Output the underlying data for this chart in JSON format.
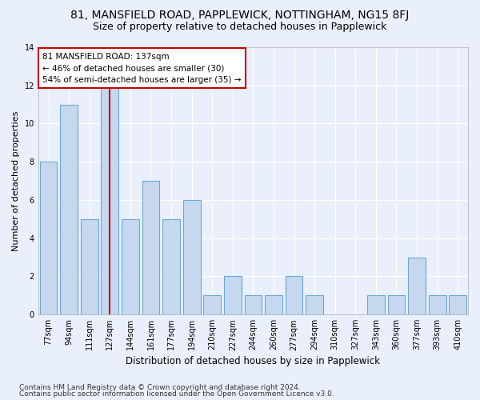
{
  "title": "81, MANSFIELD ROAD, PAPPLEWICK, NOTTINGHAM, NG15 8FJ",
  "subtitle": "Size of property relative to detached houses in Papplewick",
  "xlabel": "Distribution of detached houses by size in Papplewick",
  "ylabel": "Number of detached properties",
  "categories": [
    "77sqm",
    "94sqm",
    "111sqm",
    "127sqm",
    "144sqm",
    "161sqm",
    "177sqm",
    "194sqm",
    "210sqm",
    "227sqm",
    "244sqm",
    "260sqm",
    "277sqm",
    "294sqm",
    "310sqm",
    "327sqm",
    "343sqm",
    "360sqm",
    "377sqm",
    "393sqm",
    "410sqm"
  ],
  "values": [
    8,
    11,
    5,
    12,
    5,
    7,
    5,
    6,
    1,
    2,
    1,
    1,
    2,
    1,
    0,
    0,
    1,
    1,
    3,
    1,
    1
  ],
  "bar_color": "#c5d8f0",
  "bar_edge_color": "#6aaad4",
  "highlight_index": 3,
  "highlight_line_color": "#cc0000",
  "annotation_box_text": "81 MANSFIELD ROAD: 137sqm\n← 46% of detached houses are smaller (30)\n54% of semi-detached houses are larger (35) →",
  "annotation_box_color": "white",
  "annotation_box_edge_color": "#cc0000",
  "ylim": [
    0,
    14
  ],
  "yticks": [
    0,
    2,
    4,
    6,
    8,
    10,
    12,
    14
  ],
  "footer_line1": "Contains HM Land Registry data © Crown copyright and database right 2024.",
  "footer_line2": "Contains public sector information licensed under the Open Government Licence v3.0.",
  "bg_color": "#eaf0fb",
  "grid_color": "#ffffff",
  "title_fontsize": 10,
  "subtitle_fontsize": 9,
  "xlabel_fontsize": 8.5,
  "ylabel_fontsize": 8,
  "tick_fontsize": 7,
  "annotation_fontsize": 7.5,
  "footer_fontsize": 6.5
}
